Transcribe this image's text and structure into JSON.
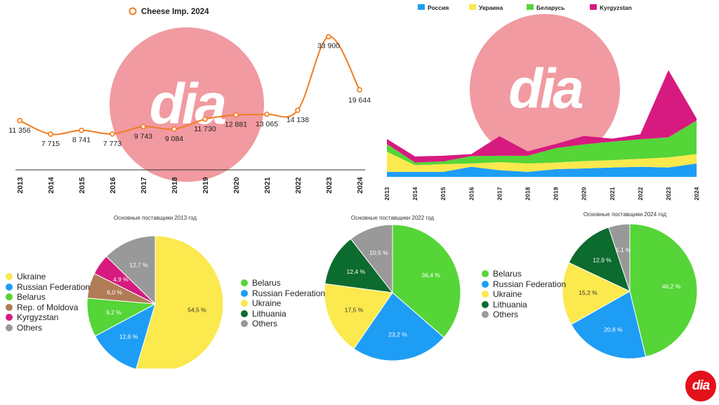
{
  "watermark": {
    "text": "dia",
    "color": "#f19aa1"
  },
  "brand_logo": {
    "text": "dia",
    "color": "#e3111b"
  },
  "colors": {
    "line": "#f07c1f",
    "russia": "#1e9df5",
    "ukraine": "#fbe94e",
    "belarus": "#55d537",
    "kyrgyzstan": "#d61a80",
    "moldova": "#b07c56",
    "lithuania": "#0c6b2e",
    "others": "#999999"
  },
  "chart_data": [
    {
      "type": "line",
      "title": "",
      "legend": [
        "Cheese Imp. 2024"
      ],
      "x": [
        "2013",
        "2014",
        "2015",
        "2016",
        "2017",
        "2018",
        "2019",
        "2020",
        "2021",
        "2022",
        "2023",
        "2024"
      ],
      "series": [
        {
          "name": "Cheese Imp. 2024",
          "values": [
            11356,
            7715,
            8741,
            7773,
            9743,
            9084,
            11730,
            12881,
            13065,
            14138,
            33900,
            19644
          ],
          "labels": [
            "11 356",
            "7 715",
            "8 741",
            "7 773",
            "9 743",
            "9 084",
            "11 730",
            "12 881",
            "13 065",
            "14 138",
            "33 900",
            "19 644"
          ]
        }
      ],
      "grid": false,
      "legend_position": "top"
    },
    {
      "type": "area",
      "stacked": true,
      "x": [
        "2013",
        "2014",
        "2015",
        "2016",
        "2017",
        "2018",
        "2019",
        "2020",
        "2021",
        "2022",
        "2023",
        "2024"
      ],
      "series": [
        {
          "name": "Россия",
          "values": [
            1500,
            1500,
            1500,
            3000,
            2000,
            1500,
            2300,
            2500,
            2800,
            3000,
            2800,
            4000
          ]
        },
        {
          "name": "Украина",
          "values": [
            6000,
            2000,
            2300,
            1000,
            2400,
            2500,
            2000,
            2200,
            2200,
            2400,
            3000,
            2800
          ]
        },
        {
          "name": "Беларусь",
          "values": [
            2300,
            800,
            800,
            2200,
            1900,
            2300,
            4300,
            5000,
            5500,
            5800,
            6000,
            10000
          ]
        },
        {
          "name": "Kyrgyzstan",
          "values": [
            1500,
            1800,
            1700,
            600,
            5800,
            1300,
            1200,
            2500,
            900,
            1500,
            20000,
            600
          ]
        }
      ],
      "grid": false,
      "legend_position": "top"
    },
    {
      "type": "pie",
      "title": "Основные поставщики 2013 год",
      "slices": [
        {
          "name": "Ukraine",
          "value": 54.5,
          "label": "54,5 %"
        },
        {
          "name": "Russian Federation",
          "value": 12.6,
          "label": "12,6 %"
        },
        {
          "name": "Belarus",
          "value": 9.2,
          "label": "9,2 %"
        },
        {
          "name": "Rep. of Moldova",
          "value": 6.0,
          "label": "6,0 %"
        },
        {
          "name": "Kyrgyzstan",
          "value": 4.9,
          "label": "4,9 %"
        },
        {
          "name": "Others",
          "value": 12.7,
          "label": "12,7 %"
        }
      ],
      "legend_position": "left"
    },
    {
      "type": "pie",
      "title": "Основные поставщики 2022 год",
      "slices": [
        {
          "name": "Belarus",
          "value": 36.4,
          "label": "36,4 %"
        },
        {
          "name": "Russian Federation",
          "value": 23.2,
          "label": "23,2 %"
        },
        {
          "name": "Ukraine",
          "value": 17.5,
          "label": "17,5 %"
        },
        {
          "name": "Lithuania",
          "value": 12.4,
          "label": "12,4 %"
        },
        {
          "name": "Others",
          "value": 10.5,
          "label": "10,5 %"
        }
      ],
      "legend_position": "left"
    },
    {
      "type": "pie",
      "title": "Основные поставщики 2024 год",
      "slices": [
        {
          "name": "Belarus",
          "value": 46.2,
          "label": "46,2 %"
        },
        {
          "name": "Russian Federation",
          "value": 20.6,
          "label": "20,6 %"
        },
        {
          "name": "Ukraine",
          "value": 15.2,
          "label": "15,2 %"
        },
        {
          "name": "Lithuania",
          "value": 12.9,
          "label": "12,9 %"
        },
        {
          "name": "Others",
          "value": 5.1,
          "label": "5,1 %"
        }
      ],
      "legend_position": "left"
    }
  ]
}
